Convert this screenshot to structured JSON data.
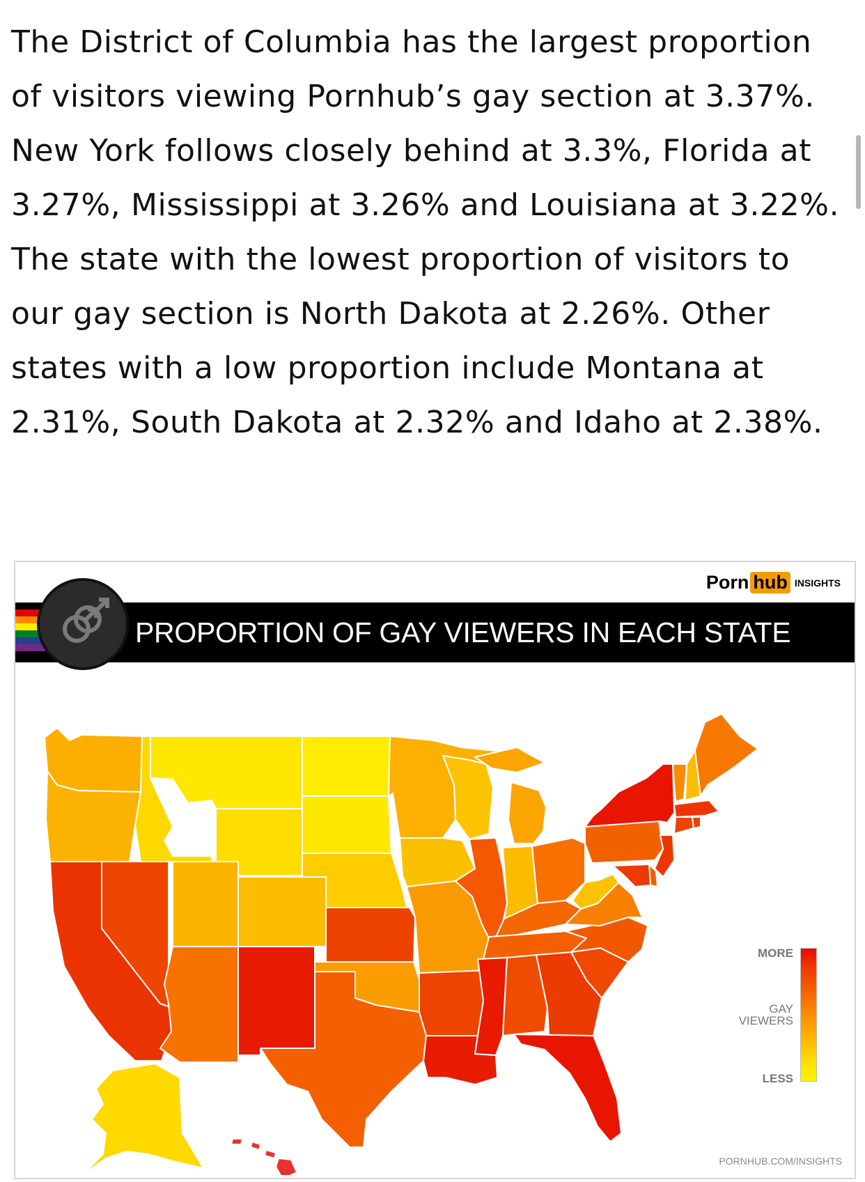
{
  "article": {
    "paragraph": "The District of Columbia has the largest proportion of visitors viewing Pornhub’s gay section at 3.37%. New York follows closely behind at 3.3%, Florida at 3.27%, Mississippi at 3.26% and Louisiana at 3.22%.  The state with the lowest proportion of visitors to our gay section is North Dakota at 2.26%. Other states with a low proportion include Montana at 2.31%, South Dakota at 2.32% and Idaho at 2.38%."
  },
  "infographic": {
    "logo": {
      "porn": "Porn",
      "hub": "hub",
      "insights": "INSIGHTS"
    },
    "title": "PROPORTION OF GAY VIEWERS IN EACH STATE",
    "legend": {
      "top": "MORE",
      "middle_line1": "GAY",
      "middle_line2": "VIEWERS",
      "bottom": "LESS"
    },
    "footer_url": "PORNHUB.COM/INSIGHTS",
    "icon": "gay-symbol-icon"
  },
  "map_data": {
    "scale_low_color": "#fff200",
    "scale_high_color": "#e80c00",
    "regions": [
      {
        "id": "WA",
        "color": "#fcaf00"
      },
      {
        "id": "OR",
        "color": "#fcb200"
      },
      {
        "id": "CA",
        "color": "#ea3300"
      },
      {
        "id": "NV",
        "color": "#ee4500"
      },
      {
        "id": "ID",
        "color": "#ffd800"
      },
      {
        "id": "MT",
        "color": "#ffe800"
      },
      {
        "id": "WY",
        "color": "#ffdd00"
      },
      {
        "id": "UT",
        "color": "#fcb400"
      },
      {
        "id": "AZ",
        "color": "#f77200"
      },
      {
        "id": "CO",
        "color": "#fdbc00"
      },
      {
        "id": "NM",
        "color": "#e81a00"
      },
      {
        "id": "ND",
        "color": "#ffec00"
      },
      {
        "id": "SD",
        "color": "#ffe800"
      },
      {
        "id": "NE",
        "color": "#ffcc00"
      },
      {
        "id": "KS",
        "color": "#ed4200"
      },
      {
        "id": "OK",
        "color": "#fb9c00"
      },
      {
        "id": "TX",
        "color": "#f46000"
      },
      {
        "id": "MN",
        "color": "#fcb000"
      },
      {
        "id": "IA",
        "color": "#fdc000"
      },
      {
        "id": "MO",
        "color": "#fb9a00"
      },
      {
        "id": "AR",
        "color": "#ee4400"
      },
      {
        "id": "LA",
        "color": "#e81c00"
      },
      {
        "id": "WI",
        "color": "#fec300"
      },
      {
        "id": "IL",
        "color": "#f45800"
      },
      {
        "id": "MI",
        "color": "#fba500"
      },
      {
        "id": "IN",
        "color": "#fdbb00"
      },
      {
        "id": "OH",
        "color": "#f77000"
      },
      {
        "id": "KY",
        "color": "#f46600"
      },
      {
        "id": "TN",
        "color": "#f46000"
      },
      {
        "id": "MS",
        "color": "#e81a00"
      },
      {
        "id": "AL",
        "color": "#ef4c00"
      },
      {
        "id": "GA",
        "color": "#ec3b00"
      },
      {
        "id": "FL",
        "color": "#e81500"
      },
      {
        "id": "SC",
        "color": "#ef4800"
      },
      {
        "id": "NC",
        "color": "#f25800"
      },
      {
        "id": "VA",
        "color": "#f98000"
      },
      {
        "id": "WV",
        "color": "#fdc300"
      },
      {
        "id": "PA",
        "color": "#f26000"
      },
      {
        "id": "NY",
        "color": "#e81500"
      },
      {
        "id": "VT",
        "color": "#fa8a00"
      },
      {
        "id": "NH",
        "color": "#fdbe00"
      },
      {
        "id": "ME",
        "color": "#f77800"
      },
      {
        "id": "MA",
        "color": "#ec3500"
      },
      {
        "id": "CT",
        "color": "#ee4400"
      },
      {
        "id": "RI",
        "color": "#ee4000"
      },
      {
        "id": "NJ",
        "color": "#ec3800"
      },
      {
        "id": "DE",
        "color": "#f06000"
      },
      {
        "id": "MD",
        "color": "#ec3a00"
      },
      {
        "id": "AK",
        "color": "#ffd900"
      },
      {
        "id": "HI",
        "color": "#e83030"
      }
    ]
  }
}
